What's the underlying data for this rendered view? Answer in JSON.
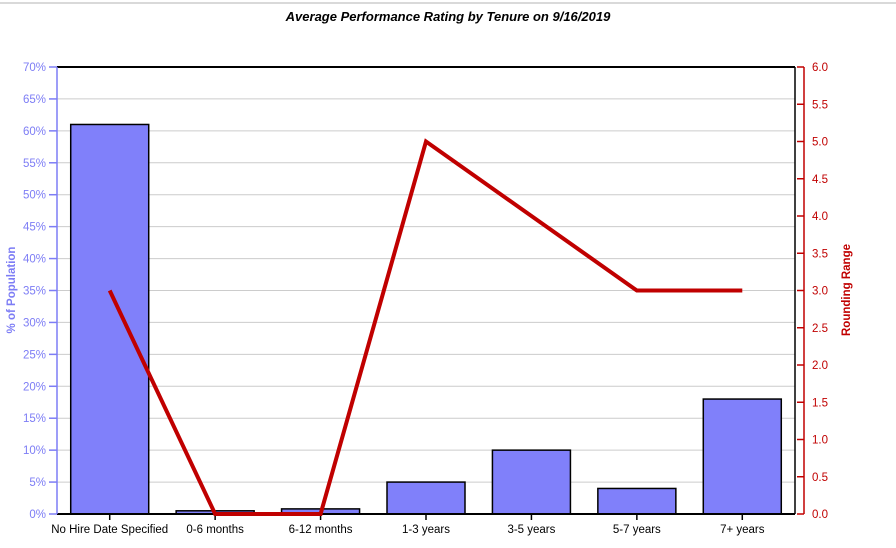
{
  "window": {
    "top_rule_color": "#d9d9d9",
    "background": "#ffffff"
  },
  "chart_data": {
    "type": "combo",
    "title": "Average Performance Rating by Tenure on 9/16/2019",
    "categories": [
      "No Hire Date Specified",
      "0-6 months",
      "6-12 months",
      "1-3 years",
      "3-5 years",
      "5-7 years",
      "7+ years"
    ],
    "series": [
      {
        "name": "% of Population",
        "type": "bar",
        "axis": "left",
        "unit": "%",
        "values": [
          61,
          0.5,
          0.8,
          5,
          10,
          4,
          18
        ],
        "fill": "#8080fa",
        "stroke": "#000000"
      },
      {
        "name": "Rounding Range",
        "type": "line",
        "axis": "right",
        "values": [
          3.0,
          0.0,
          0.0,
          5.0,
          4.0,
          3.0,
          3.0
        ],
        "color": "#c00000"
      }
    ],
    "left_axis": {
      "label": "% of Population",
      "min": 0,
      "max": 70,
      "step": 5,
      "tick_format": "percent",
      "color": "#7d7df5"
    },
    "right_axis": {
      "label": "Rounding Range",
      "min": 0,
      "max": 6,
      "step": 0.5,
      "tick_format": "one_decimal",
      "color": "#c00000"
    },
    "x_axis": {
      "color": "#000000"
    },
    "grid": {
      "show": true,
      "color": "#cccccc"
    },
    "legend_position": "none",
    "plot_background": "#ffffff"
  }
}
